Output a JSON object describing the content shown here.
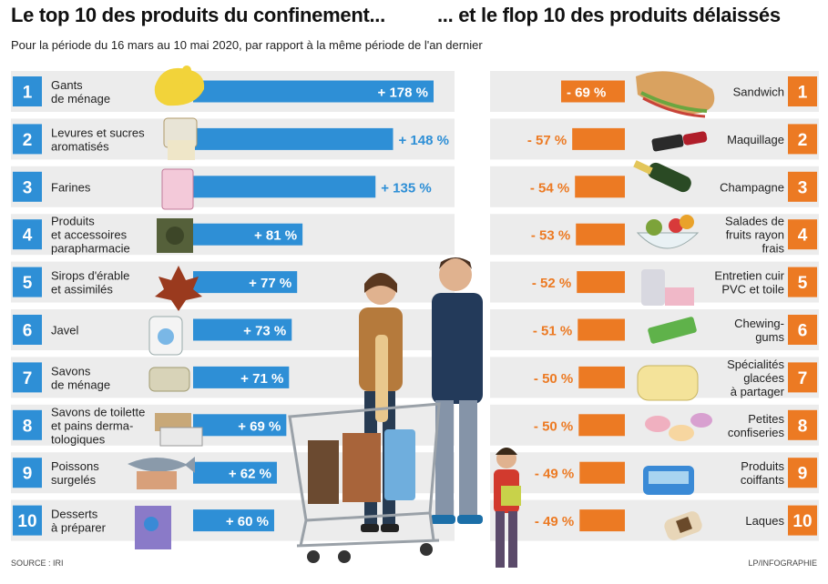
{
  "header": {
    "title_left": "Le top 10 des produits du confinement...",
    "title_right": "... et le flop 10 des produits délaissés",
    "subtitle": "Pour la période du 16 mars au 10 mai 2020, par rapport à la même période de l'an dernier"
  },
  "footer": {
    "source": "SOURCE : IRI",
    "credit": "LP/INFOGRAPHIE"
  },
  "colors": {
    "top": "#2e8fd6",
    "flop": "#ec7a23",
    "panel": "#ececec"
  },
  "chart_data": [
    {
      "type": "bar",
      "title": "Le top 10 des produits du confinement...",
      "unit": "%",
      "categories": [
        [
          "Gants",
          "de ménage"
        ],
        [
          "Levures et sucres",
          "aromatisés"
        ],
        [
          "Farines"
        ],
        [
          "Produits",
          "et accessoires",
          "parapharmacie"
        ],
        [
          "Sirops d'érable",
          "et assimilés"
        ],
        [
          "Javel"
        ],
        [
          "Savons",
          "de ménage"
        ],
        [
          "Savons de toilette",
          "et pains derma-",
          "tologiques"
        ],
        [
          "Poissons",
          "surgelés"
        ],
        [
          "Desserts",
          "à préparer"
        ]
      ],
      "values": [
        178,
        148,
        135,
        81,
        77,
        73,
        71,
        69,
        62,
        60
      ],
      "value_labels": [
        "+ 178 %",
        "+ 148 %",
        "+ 135 %",
        "+ 81 %",
        "+ 77 %",
        "+ 73 %",
        "+ 71 %",
        "+ 69 %",
        "+ 62 %",
        "+ 60 %"
      ],
      "ranks": [
        "1",
        "2",
        "3",
        "4",
        "5",
        "6",
        "7",
        "8",
        "9",
        "10"
      ]
    },
    {
      "type": "bar",
      "title": "... et le flop 10 des produits délaissés",
      "unit": "%",
      "categories": [
        [
          "Sandwich"
        ],
        [
          "Maquillage"
        ],
        [
          "Champagne"
        ],
        [
          "Salades de",
          "fruits rayon",
          "frais"
        ],
        [
          "Entretien cuir",
          "PVC et toile"
        ],
        [
          "Chewing-",
          "gums"
        ],
        [
          "Spécialités",
          "glacées",
          "à partager"
        ],
        [
          "Petites",
          "confiseries"
        ],
        [
          "Produits",
          "coiffants"
        ],
        [
          "Laques"
        ]
      ],
      "values": [
        -69,
        -57,
        -54,
        -53,
        -52,
        -51,
        -50,
        -50,
        -49,
        -49
      ],
      "value_labels": [
        "- 69 %",
        "- 57 %",
        "- 54 %",
        "- 53 %",
        "- 52 %",
        "- 51 %",
        "- 50 %",
        "- 50 %",
        "- 49 %",
        "- 49 %"
      ],
      "ranks": [
        "1",
        "2",
        "3",
        "4",
        "5",
        "6",
        "7",
        "8",
        "9",
        "10"
      ]
    }
  ]
}
